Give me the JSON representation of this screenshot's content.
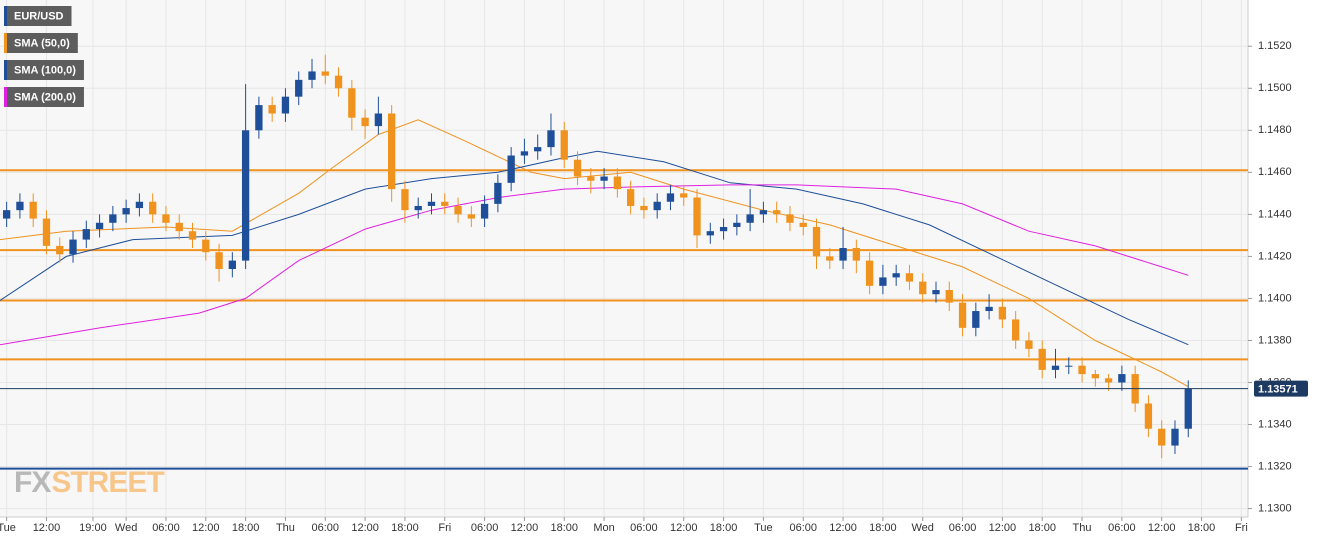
{
  "chart_data": {
    "type": "candlestick",
    "name": "EUR/USD",
    "up_color": "#1f4f99",
    "down_color": "#f0921e",
    "x": [
      6,
      8,
      10,
      12,
      14,
      16,
      18,
      20,
      22,
      24,
      26,
      28,
      30,
      32,
      34,
      36,
      38,
      40,
      42,
      44,
      46,
      48,
      50,
      52,
      54,
      56,
      58,
      60,
      62,
      64,
      66,
      68,
      70,
      72,
      74,
      76,
      78,
      80,
      82,
      84,
      86,
      88,
      90,
      92,
      94,
      96,
      98,
      100,
      102,
      104,
      106,
      108,
      110,
      112,
      114,
      116,
      118,
      120,
      122,
      124,
      126,
      128,
      130,
      132,
      134,
      136,
      138,
      140,
      142,
      144,
      146,
      148,
      150,
      152,
      154,
      156,
      158,
      160,
      162,
      164,
      166,
      168,
      170,
      172,
      174,
      176,
      178,
      180,
      182,
      184
    ],
    "open": [
      1.1438,
      1.1442,
      1.1446,
      1.1438,
      1.1425,
      1.1421,
      1.1428,
      1.1433,
      1.1436,
      1.144,
      1.1443,
      1.1446,
      1.144,
      1.1436,
      1.1432,
      1.1428,
      1.1422,
      1.1414,
      1.1418,
      1.148,
      1.1492,
      1.1488,
      1.1496,
      1.1504,
      1.1508,
      1.1506,
      1.15,
      1.1486,
      1.1482,
      1.1488,
      1.1452,
      1.1442,
      1.1444,
      1.1446,
      1.1444,
      1.144,
      1.1438,
      1.1445,
      1.1455,
      1.1468,
      1.147,
      1.1472,
      1.148,
      1.1466,
      1.1458,
      1.1456,
      1.1458,
      1.1452,
      1.1444,
      1.1442,
      1.1446,
      1.145,
      1.1448,
      1.143,
      1.1432,
      1.1434,
      1.1436,
      1.144,
      1.1442,
      1.144,
      1.1436,
      1.1434,
      1.142,
      1.1418,
      1.1424,
      1.1418,
      1.1406,
      1.141,
      1.1412,
      1.1408,
      1.1402,
      1.1404,
      1.1398,
      1.1386,
      1.1394,
      1.1396,
      1.139,
      1.138,
      1.1376,
      1.1366,
      1.1368,
      1.1368,
      1.1364,
      1.1362,
      1.136,
      1.1364,
      1.135,
      1.1338,
      1.133,
      1.1338
    ],
    "high": [
      1.1446,
      1.145,
      1.145,
      1.1442,
      1.1429,
      1.1432,
      1.1437,
      1.144,
      1.1444,
      1.1447,
      1.145,
      1.145,
      1.1444,
      1.144,
      1.1436,
      1.1432,
      1.1426,
      1.1422,
      1.1502,
      1.1496,
      1.1496,
      1.15,
      1.1508,
      1.1514,
      1.1516,
      1.151,
      1.1504,
      1.149,
      1.1496,
      1.1492,
      1.1456,
      1.1448,
      1.145,
      1.145,
      1.1448,
      1.1444,
      1.1449,
      1.1459,
      1.1472,
      1.1476,
      1.1478,
      1.1488,
      1.1484,
      1.147,
      1.1462,
      1.1462,
      1.1462,
      1.1456,
      1.1448,
      1.145,
      1.1454,
      1.1454,
      1.1452,
      1.1436,
      1.1438,
      1.144,
      1.1452,
      1.1446,
      1.1446,
      1.1444,
      1.144,
      1.1438,
      1.1424,
      1.1434,
      1.1428,
      1.1422,
      1.1416,
      1.1416,
      1.1416,
      1.1412,
      1.1408,
      1.1408,
      1.1402,
      1.1398,
      1.1402,
      1.14,
      1.1394,
      1.1384,
      1.138,
      1.1376,
      1.1372,
      1.1372,
      1.1366,
      1.1364,
      1.1368,
      1.1368,
      1.1354,
      1.1342,
      1.1342,
      1.1361
    ],
    "low": [
      1.1434,
      1.1438,
      1.1434,
      1.1421,
      1.1417,
      1.1417,
      1.1424,
      1.1429,
      1.1432,
      1.1436,
      1.1439,
      1.1436,
      1.1432,
      1.1428,
      1.1424,
      1.1418,
      1.1408,
      1.141,
      1.1414,
      1.1476,
      1.1484,
      1.1484,
      1.1492,
      1.15,
      1.1502,
      1.1496,
      1.148,
      1.1476,
      1.1478,
      1.1446,
      1.1436,
      1.1438,
      1.144,
      1.144,
      1.1436,
      1.1434,
      1.1434,
      1.1441,
      1.1451,
      1.1464,
      1.1466,
      1.1468,
      1.1462,
      1.1454,
      1.145,
      1.1452,
      1.1448,
      1.144,
      1.1438,
      1.1438,
      1.1442,
      1.1444,
      1.1424,
      1.1426,
      1.1428,
      1.143,
      1.1432,
      1.1436,
      1.1436,
      1.1432,
      1.143,
      1.1414,
      1.1414,
      1.1414,
      1.1412,
      1.1402,
      1.1402,
      1.1406,
      1.1404,
      1.1398,
      1.1398,
      1.1394,
      1.1382,
      1.1382,
      1.139,
      1.1386,
      1.1376,
      1.1372,
      1.1362,
      1.1362,
      1.1364,
      1.136,
      1.1358,
      1.1356,
      1.1356,
      1.1346,
      1.1334,
      1.1324,
      1.1326,
      1.1334
    ],
    "close": [
      1.1442,
      1.1446,
      1.1438,
      1.1425,
      1.1421,
      1.1428,
      1.1433,
      1.1436,
      1.144,
      1.1443,
      1.1446,
      1.144,
      1.1436,
      1.1432,
      1.1428,
      1.1422,
      1.1414,
      1.1418,
      1.148,
      1.1492,
      1.1488,
      1.1496,
      1.1504,
      1.1508,
      1.1506,
      1.15,
      1.1486,
      1.1482,
      1.1488,
      1.1452,
      1.1442,
      1.1444,
      1.1446,
      1.1444,
      1.144,
      1.1438,
      1.1445,
      1.1455,
      1.1468,
      1.147,
      1.1472,
      1.148,
      1.1466,
      1.1458,
      1.1456,
      1.1458,
      1.1452,
      1.1444,
      1.1442,
      1.1446,
      1.145,
      1.1448,
      1.143,
      1.1432,
      1.1434,
      1.1436,
      1.144,
      1.1442,
      1.144,
      1.1436,
      1.1434,
      1.142,
      1.1418,
      1.1424,
      1.1418,
      1.1406,
      1.141,
      1.1412,
      1.1408,
      1.1402,
      1.1404,
      1.1398,
      1.1386,
      1.1394,
      1.1396,
      1.139,
      1.138,
      1.1376,
      1.1366,
      1.1368,
      1.1368,
      1.1364,
      1.1362,
      1.136,
      1.1364,
      1.135,
      1.1338,
      1.133,
      1.1338,
      1.1357
    ],
    "overlays": [
      {
        "name": "SMA (50,0)",
        "color": "#f0921e",
        "x": [
          5,
          15,
          30,
          40,
          50,
          55,
          62,
          68,
          75,
          85,
          90,
          100,
          108,
          120,
          130,
          140,
          150,
          160,
          170,
          180,
          184
        ],
        "values": [
          1.1428,
          1.1432,
          1.1434,
          1.1432,
          1.145,
          1.1462,
          1.1478,
          1.1485,
          1.1475,
          1.146,
          1.1457,
          1.146,
          1.1452,
          1.1442,
          1.1435,
          1.1425,
          1.1415,
          1.14,
          1.138,
          1.1365,
          1.1358
        ]
      },
      {
        "name": "SMA (100,0)",
        "color": "#1f4f99",
        "x": [
          5,
          15,
          25,
          40,
          50,
          60,
          70,
          80,
          90,
          95,
          105,
          115,
          125,
          135,
          145,
          155,
          165,
          175,
          184
        ],
        "values": [
          1.1399,
          1.142,
          1.1428,
          1.143,
          1.144,
          1.1452,
          1.1457,
          1.146,
          1.1467,
          1.147,
          1.1465,
          1.1455,
          1.1452,
          1.1445,
          1.1435,
          1.142,
          1.1405,
          1.139,
          1.1378
        ]
      },
      {
        "name": "SMA (200,0)",
        "color": "#e020e0",
        "x": [
          5,
          20,
          35,
          42,
          50,
          60,
          70,
          80,
          90,
          100,
          115,
          125,
          140,
          150,
          160,
          170,
          180,
          184
        ],
        "values": [
          1.1378,
          1.1386,
          1.1393,
          1.14,
          1.1418,
          1.1433,
          1.1442,
          1.1448,
          1.1452,
          1.1453,
          1.1454,
          1.1454,
          1.1452,
          1.1445,
          1.1432,
          1.1425,
          1.1415,
          1.1411
        ]
      }
    ],
    "levels": [
      {
        "value": 1.1461,
        "color": "#f0921e"
      },
      {
        "value": 1.1423,
        "color": "#f0921e"
      },
      {
        "value": 1.1399,
        "color": "#f0921e"
      },
      {
        "value": 1.1371,
        "color": "#f0921e"
      },
      {
        "value": 1.1319,
        "color": "#1f4f99"
      }
    ],
    "last_price": {
      "value": 1.13571,
      "label": "1.13571",
      "color": "#1d3a63"
    },
    "watermark": [
      "FX",
      "STREET"
    ],
    "xlim": [
      5,
      193
    ],
    "ylim": [
      1.1296,
      1.1542
    ],
    "xticks": [
      {
        "value": 6,
        "label": "Tue"
      },
      {
        "value": 12,
        "label": "12:00"
      },
      {
        "value": 19,
        "label": "19:00"
      },
      {
        "value": 24,
        "label": "Wed"
      },
      {
        "value": 30,
        "label": "06:00"
      },
      {
        "value": 36,
        "label": "12:00"
      },
      {
        "value": 42,
        "label": "18:00"
      },
      {
        "value": 48,
        "label": "Thu"
      },
      {
        "value": 54,
        "label": "06:00"
      },
      {
        "value": 60,
        "label": "12:00"
      },
      {
        "value": 66,
        "label": "18:00"
      },
      {
        "value": 72,
        "label": "Fri"
      },
      {
        "value": 78,
        "label": "06:00"
      },
      {
        "value": 84,
        "label": "12:00"
      },
      {
        "value": 90,
        "label": "18:00"
      },
      {
        "value": 96,
        "label": "Mon"
      },
      {
        "value": 102,
        "label": "06:00"
      },
      {
        "value": 108,
        "label": "12:00"
      },
      {
        "value": 114,
        "label": "18:00"
      },
      {
        "value": 120,
        "label": "Tue"
      },
      {
        "value": 126,
        "label": "06:00"
      },
      {
        "value": 132,
        "label": "12:00"
      },
      {
        "value": 138,
        "label": "18:00"
      },
      {
        "value": 144,
        "label": "Wed"
      },
      {
        "value": 150,
        "label": "06:00"
      },
      {
        "value": 156,
        "label": "12:00"
      },
      {
        "value": 162,
        "label": "18:00"
      },
      {
        "value": 168,
        "label": "Thu"
      },
      {
        "value": 174,
        "label": "06:00"
      },
      {
        "value": 180,
        "label": "12:00"
      },
      {
        "value": 186,
        "label": "18:00"
      },
      {
        "value": 192,
        "label": "Fri"
      }
    ],
    "yticks": [
      {
        "value": 1.13,
        "label": "1.1300"
      },
      {
        "value": 1.132,
        "label": "1.1320"
      },
      {
        "value": 1.134,
        "label": "1.1340"
      },
      {
        "value": 1.136,
        "label": "1.1360"
      },
      {
        "value": 1.138,
        "label": "1.1380"
      },
      {
        "value": 1.14,
        "label": "1.1400"
      },
      {
        "value": 1.142,
        "label": "1.1420"
      },
      {
        "value": 1.144,
        "label": "1.1440"
      },
      {
        "value": 1.146,
        "label": "1.1460"
      },
      {
        "value": 1.148,
        "label": "1.1480"
      },
      {
        "value": 1.15,
        "label": "1.1500"
      },
      {
        "value": 1.152,
        "label": "1.1520"
      }
    ],
    "grid": true
  }
}
